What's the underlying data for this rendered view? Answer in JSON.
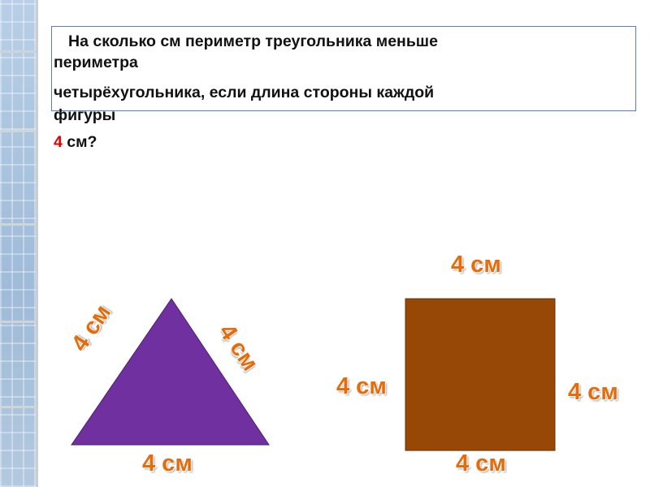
{
  "question": {
    "line1": "На сколько см периметр треугольника меньше",
    "line2": "периметра",
    "line3": "четырёхугольника, если длина стороны каждой",
    "line4": "фигуры",
    "line5_number": "4",
    "line5_rest": " см?"
  },
  "triangle": {
    "color": "#7030a0",
    "side_left": "4 см",
    "side_right": "4 см",
    "side_bottom": "4 см"
  },
  "square": {
    "color": "#984806",
    "side_top": "4 см",
    "side_left": "4 см",
    "side_right": "4 см",
    "side_bottom": "4 см"
  },
  "colors": {
    "label": "#e46c0a",
    "highlight": "#e00000",
    "box_border": "#5b7fb8"
  }
}
